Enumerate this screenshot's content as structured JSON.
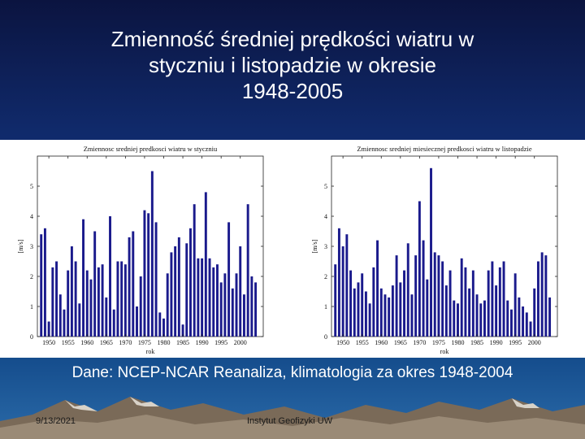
{
  "slide": {
    "title_line1": "Zmienność średniej prędkości wiatru w",
    "title_line2": "styczniu i listopadzie w okresie",
    "title_line3": "1948-2005",
    "caption": "Dane: NCEP-NCAR Reanaliza, klimatologia za okres 1948-2004",
    "footer_date": "9/13/2021",
    "footer_institute": "Instytut Geofizyki UW"
  },
  "colors": {
    "bar": "#1a1a8c",
    "axis": "#222222",
    "background_top": "#0b1440",
    "panel": "#ffffff"
  },
  "chart_data": [
    {
      "type": "bar",
      "title": "Zmiennosc sredniej predkosci wiatru w styczniu",
      "xlabel": "rok",
      "ylabel": "[m/s]",
      "ylim": [
        0,
        6
      ],
      "xlim": [
        1947,
        2006
      ],
      "yticks": [
        0,
        1,
        2,
        3,
        4,
        5
      ],
      "xticks": [
        1950,
        1955,
        1960,
        1965,
        1970,
        1975,
        1980,
        1985,
        1990,
        1995,
        2000
      ],
      "x": [
        1948,
        1949,
        1950,
        1951,
        1952,
        1953,
        1954,
        1955,
        1956,
        1957,
        1958,
        1959,
        1960,
        1961,
        1962,
        1963,
        1964,
        1965,
        1966,
        1967,
        1968,
        1969,
        1970,
        1971,
        1972,
        1973,
        1974,
        1975,
        1976,
        1977,
        1978,
        1979,
        1980,
        1981,
        1982,
        1983,
        1984,
        1985,
        1986,
        1987,
        1988,
        1989,
        1990,
        1991,
        1992,
        1993,
        1994,
        1995,
        1996,
        1997,
        1998,
        1999,
        2000,
        2001,
        2002,
        2003,
        2004,
        2005
      ],
      "values": [
        3.4,
        3.6,
        0.5,
        2.3,
        2.5,
        1.4,
        0.9,
        2.2,
        3.0,
        2.5,
        1.1,
        3.9,
        2.2,
        1.9,
        3.5,
        2.3,
        2.4,
        1.3,
        4.0,
        0.9,
        2.5,
        2.5,
        2.4,
        3.3,
        3.5,
        1.0,
        2.0,
        4.2,
        4.1,
        5.5,
        3.8,
        0.8,
        0.6,
        2.1,
        2.8,
        3.0,
        3.3,
        0.4,
        3.1,
        3.6,
        4.4,
        2.6,
        2.6,
        4.8,
        2.6,
        2.3,
        2.4,
        1.8,
        2.1,
        3.8,
        1.6,
        2.1,
        3.0,
        1.4,
        4.4,
        2.0,
        1.8,
        null
      ]
    },
    {
      "type": "bar",
      "title": "Zmiennosc sredniej miesiecznej predkosci wiatru w listopadzie",
      "xlabel": "rok",
      "ylabel": "[m/s]",
      "ylim": [
        0,
        6
      ],
      "xlim": [
        1947,
        2006
      ],
      "yticks": [
        0,
        1,
        2,
        3,
        4,
        5
      ],
      "xticks": [
        1950,
        1955,
        1960,
        1965,
        1970,
        1975,
        1980,
        1985,
        1990,
        1995,
        2000
      ],
      "x": [
        1948,
        1949,
        1950,
        1951,
        1952,
        1953,
        1954,
        1955,
        1956,
        1957,
        1958,
        1959,
        1960,
        1961,
        1962,
        1963,
        1964,
        1965,
        1966,
        1967,
        1968,
        1969,
        1970,
        1971,
        1972,
        1973,
        1974,
        1975,
        1976,
        1977,
        1978,
        1979,
        1980,
        1981,
        1982,
        1983,
        1984,
        1985,
        1986,
        1987,
        1988,
        1989,
        1990,
        1991,
        1992,
        1993,
        1994,
        1995,
        1996,
        1997,
        1998,
        1999,
        2000,
        2001,
        2002,
        2003,
        2004,
        2005
      ],
      "values": [
        2.4,
        3.6,
        3.0,
        3.4,
        2.2,
        1.6,
        1.8,
        2.1,
        1.5,
        1.1,
        2.3,
        3.2,
        1.6,
        1.4,
        1.3,
        1.7,
        2.7,
        1.8,
        2.2,
        3.1,
        1.4,
        2.7,
        4.5,
        3.2,
        1.9,
        5.6,
        2.8,
        2.7,
        2.5,
        1.7,
        2.2,
        1.2,
        1.1,
        2.6,
        2.3,
        1.6,
        2.2,
        1.4,
        1.1,
        1.2,
        2.2,
        2.5,
        1.7,
        2.3,
        2.5,
        1.2,
        0.9,
        2.1,
        1.3,
        1.0,
        0.8,
        0.5,
        1.6,
        2.5,
        2.8,
        2.7,
        1.3,
        null
      ]
    }
  ]
}
